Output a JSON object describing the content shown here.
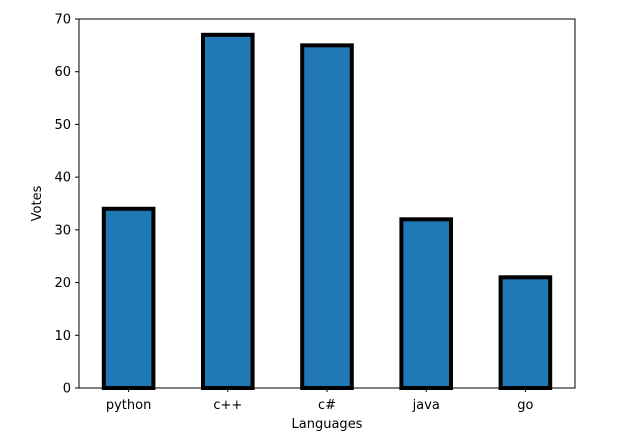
{
  "chart_data": {
    "type": "bar",
    "categories": [
      "python",
      "c++",
      "c#",
      "java",
      "go"
    ],
    "values": [
      34,
      67,
      65,
      32,
      21
    ],
    "xlabel": "Languages",
    "ylabel": "Votes",
    "ylim": [
      0,
      70
    ],
    "yticks": [
      0,
      10,
      20,
      30,
      40,
      50,
      60,
      70
    ],
    "grid": false,
    "bar_color": "#1f77b4",
    "bar_edge_color": "#000000"
  }
}
